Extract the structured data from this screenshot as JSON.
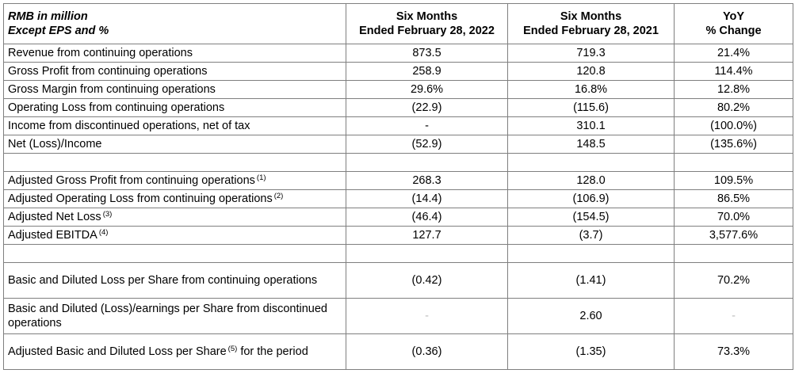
{
  "header": {
    "label_line1": "RMB in million",
    "label_line2": "Except EPS and %",
    "col_a_line1": "Six Months",
    "col_a_line2": "Ended February 28, 2022",
    "col_b_line1": "Six Months",
    "col_b_line2": "Ended February 28, 2021",
    "col_c_line1": "YoY",
    "col_c_line2": "% Change"
  },
  "section1": [
    {
      "label": "Revenue from continuing operations",
      "a": "873.5",
      "b": "719.3",
      "c": "21.4%"
    },
    {
      "label": "Gross Profit from continuing operations",
      "a": "258.9",
      "b": "120.8",
      "c": "114.4%"
    },
    {
      "label": "Gross Margin from continuing operations",
      "a": "29.6%",
      "b": "16.8%",
      "c": "12.8%"
    },
    {
      "label": "Operating Loss from continuing operations",
      "a": "(22.9)",
      "b": "(115.6)",
      "c": "80.2%"
    },
    {
      "label": "Income from discontinued operations, net of tax",
      "a": "-",
      "b": "310.1",
      "c": "(100.0%)"
    },
    {
      "label": "Net (Loss)/Income",
      "a": "(52.9)",
      "b": "148.5",
      "c": "(135.6%)"
    }
  ],
  "section2": [
    {
      "label": "Adjusted Gross Profit from continuing operations",
      "note": "(1)",
      "a": "268.3",
      "b": "128.0",
      "c": "109.5%"
    },
    {
      "label": "Adjusted Operating Loss from continuing operations",
      "note": "(2)",
      "a": "(14.4)",
      "b": "(106.9)",
      "c": "86.5%"
    },
    {
      "label": "Adjusted Net Loss",
      "note": "(3)",
      "a": "(46.4)",
      "b": "(154.5)",
      "c": "70.0%"
    },
    {
      "label": "Adjusted EBITDA",
      "note": "(4)",
      "a": "127.7",
      "b": "(3.7)",
      "c": "3,577.6%"
    }
  ],
  "section3": [
    {
      "label": "Basic and Diluted Loss per Share from continuing operations",
      "a": "(0.42)",
      "b": "(1.41)",
      "c": "70.2%"
    },
    {
      "label": "Basic and Diluted (Loss)/earnings per Share from discontinued operations",
      "a": "-",
      "b": "2.60",
      "c": "-"
    },
    {
      "label_before": "Adjusted Basic and Diluted Loss per Share",
      "note": "(5)",
      "label_after": "for the period",
      "a": "(0.36)",
      "b": "(1.35)",
      "c": "73.3%"
    }
  ]
}
